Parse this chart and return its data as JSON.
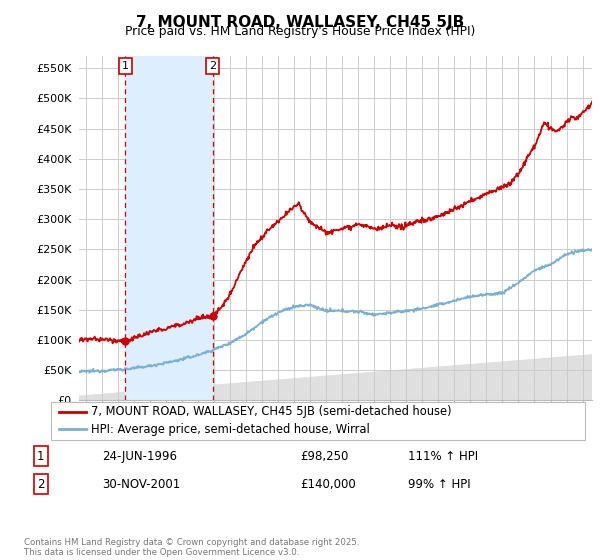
{
  "title": "7, MOUNT ROAD, WALLASEY, CH45 5JB",
  "subtitle": "Price paid vs. HM Land Registry's House Price Index (HPI)",
  "ylabel_ticks": [
    "£0",
    "£50K",
    "£100K",
    "£150K",
    "£200K",
    "£250K",
    "£300K",
    "£350K",
    "£400K",
    "£450K",
    "£500K",
    "£550K"
  ],
  "ytick_values": [
    0,
    50000,
    100000,
    150000,
    200000,
    250000,
    300000,
    350000,
    400000,
    450000,
    500000,
    550000
  ],
  "ylim": [
    0,
    570000
  ],
  "xlim_start": 1993.6,
  "xlim_end": 2025.6,
  "purchase1_x": 1996.48,
  "purchase1_y": 98250,
  "purchase2_x": 2001.92,
  "purchase2_y": 140000,
  "legend_line1": "7, MOUNT ROAD, WALLASEY, CH45 5JB (semi-detached house)",
  "legend_line2": "HPI: Average price, semi-detached house, Wirral",
  "note1_num": "1",
  "note1_date": "24-JUN-1996",
  "note1_price": "£98,250",
  "note1_hpi": "111% ↑ HPI",
  "note2_num": "2",
  "note2_date": "30-NOV-2001",
  "note2_price": "£140,000",
  "note2_hpi": "99% ↑ HPI",
  "copyright": "Contains HM Land Registry data © Crown copyright and database right 2025.\nThis data is licensed under the Open Government Licence v3.0.",
  "red_color": "#cc0000",
  "blue_color": "#7ab0d4",
  "bg_color": "#ffffff",
  "grid_color": "#cccccc",
  "shade_color": "#ddeeff",
  "hatch_line_color": "#dddddd"
}
